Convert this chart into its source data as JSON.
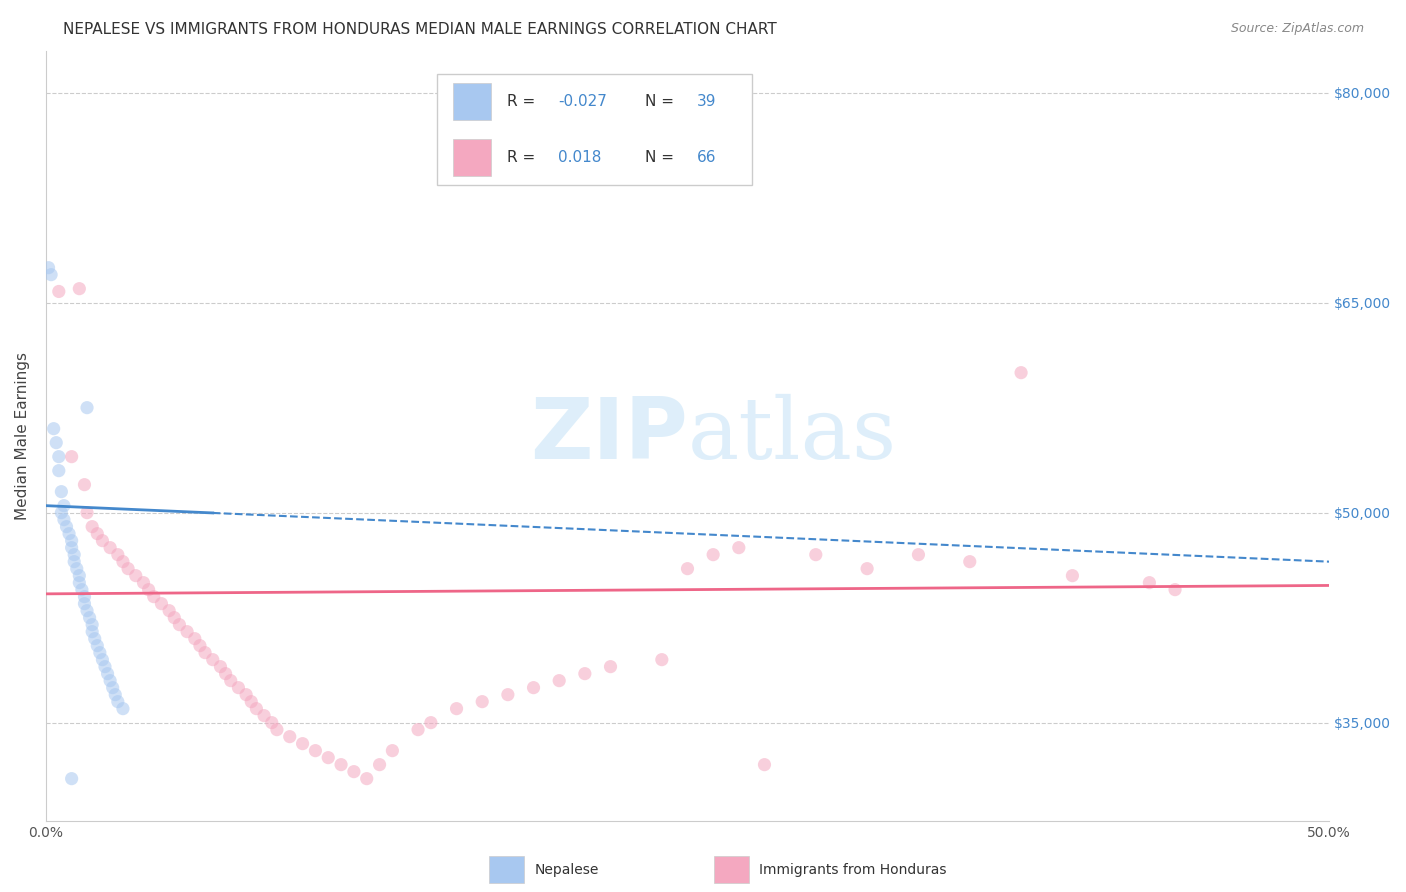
{
  "title": "NEPALESE VS IMMIGRANTS FROM HONDURAS MEDIAN MALE EARNINGS CORRELATION CHART",
  "source": "Source: ZipAtlas.com",
  "ylabel": "Median Male Earnings",
  "xlim": [
    0.0,
    0.5
  ],
  "ylim": [
    28000,
    83000
  ],
  "yticks": [
    35000,
    50000,
    65000,
    80000
  ],
  "ytick_labels": [
    "$35,000",
    "$50,000",
    "$65,000",
    "$80,000"
  ],
  "xticks": [
    0.0,
    0.1,
    0.2,
    0.3,
    0.4,
    0.5
  ],
  "xtick_labels": [
    "0.0%",
    "",
    "",
    "",
    "",
    "50.0%"
  ],
  "watermark": "ZIPatlas",
  "blue_color": "#a8c8f0",
  "pink_color": "#f4a8c0",
  "blue_line_color": "#4488cc",
  "pink_line_color": "#ee6688",
  "title_fontsize": 11,
  "axis_label_fontsize": 11,
  "tick_fontsize": 10,
  "scatter_size": 90,
  "scatter_alpha": 0.55,
  "background_color": "#ffffff",
  "grid_color": "#cccccc",
  "blue_scatter_x": [
    0.002,
    0.003,
    0.004,
    0.005,
    0.005,
    0.006,
    0.006,
    0.007,
    0.007,
    0.008,
    0.009,
    0.01,
    0.01,
    0.011,
    0.011,
    0.012,
    0.013,
    0.013,
    0.014,
    0.015,
    0.015,
    0.016,
    0.017,
    0.018,
    0.018,
    0.019,
    0.02,
    0.021,
    0.022,
    0.023,
    0.024,
    0.025,
    0.026,
    0.027,
    0.028,
    0.03,
    0.001,
    0.016,
    0.01
  ],
  "blue_scatter_y": [
    67000,
    56000,
    55000,
    54000,
    53000,
    51500,
    50000,
    50500,
    49500,
    49000,
    48500,
    48000,
    47500,
    47000,
    46500,
    46000,
    45500,
    45000,
    44500,
    44000,
    43500,
    43000,
    42500,
    42000,
    41500,
    41000,
    40500,
    40000,
    39500,
    39000,
    38500,
    38000,
    37500,
    37000,
    36500,
    36000,
    67500,
    57500,
    31000
  ],
  "pink_scatter_x": [
    0.005,
    0.01,
    0.013,
    0.015,
    0.016,
    0.018,
    0.02,
    0.022,
    0.025,
    0.028,
    0.03,
    0.032,
    0.035,
    0.038,
    0.04,
    0.042,
    0.045,
    0.048,
    0.05,
    0.052,
    0.055,
    0.058,
    0.06,
    0.062,
    0.065,
    0.068,
    0.07,
    0.072,
    0.075,
    0.078,
    0.08,
    0.082,
    0.085,
    0.088,
    0.09,
    0.095,
    0.1,
    0.105,
    0.11,
    0.115,
    0.12,
    0.125,
    0.13,
    0.135,
    0.145,
    0.15,
    0.16,
    0.17,
    0.18,
    0.19,
    0.2,
    0.21,
    0.22,
    0.24,
    0.25,
    0.26,
    0.27,
    0.28,
    0.3,
    0.32,
    0.34,
    0.36,
    0.38,
    0.4,
    0.43,
    0.44
  ],
  "pink_scatter_y": [
    65800,
    54000,
    66000,
    52000,
    50000,
    49000,
    48500,
    48000,
    47500,
    47000,
    46500,
    46000,
    45500,
    45000,
    44500,
    44000,
    43500,
    43000,
    42500,
    42000,
    41500,
    41000,
    40500,
    40000,
    39500,
    39000,
    38500,
    38000,
    37500,
    37000,
    36500,
    36000,
    35500,
    35000,
    34500,
    34000,
    33500,
    33000,
    32500,
    32000,
    31500,
    31000,
    32000,
    33000,
    34500,
    35000,
    36000,
    36500,
    37000,
    37500,
    38000,
    38500,
    39000,
    39500,
    46000,
    47000,
    47500,
    32000,
    47000,
    46000,
    47000,
    46500,
    60000,
    45500,
    45000,
    44500
  ],
  "blue_line_x": [
    0.0,
    0.5
  ],
  "blue_line_y": [
    50500,
    46500
  ],
  "pink_line_x": [
    0.0,
    0.5
  ],
  "pink_line_y": [
    44200,
    44800
  ]
}
